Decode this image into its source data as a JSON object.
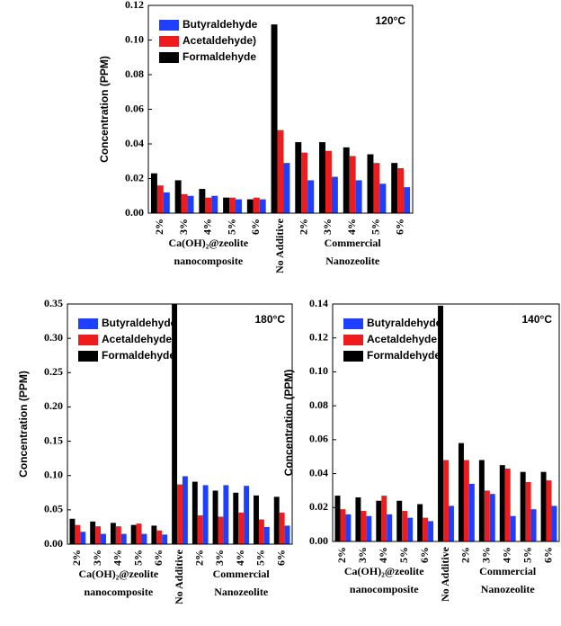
{
  "chart_data": [
    {
      "type": "bar",
      "annotation": "120°C",
      "ylabel": "Concentration (PPM)",
      "categories": [
        "2%",
        "3%",
        "4%",
        "5%",
        "6%",
        "No Additive",
        "2%",
        "3%",
        "4%",
        "5%",
        "6%"
      ],
      "group_labels": [
        [
          "Ca(OH)₂@zeolite",
          "nanocomposite"
        ],
        [
          "Commercial",
          "Nanozeolite"
        ]
      ],
      "series": [
        {
          "name": "Butyraldehyde",
          "color": "#1f3fff",
          "values": [
            0.012,
            0.01,
            0.01,
            0.008,
            0.008,
            0.029,
            0.019,
            0.021,
            0.019,
            0.017,
            0.015
          ]
        },
        {
          "name": "Acetaldehyde)",
          "color": "#ee1c1c",
          "values": [
            0.016,
            0.011,
            0.009,
            0.009,
            0.009,
            0.048,
            0.035,
            0.036,
            0.033,
            0.029,
            0.026
          ]
        },
        {
          "name": "Formaldehyde",
          "color": "#000000",
          "values": [
            0.023,
            0.019,
            0.014,
            0.009,
            0.008,
            0.109,
            0.041,
            0.041,
            0.038,
            0.034,
            0.029
          ]
        }
      ],
      "ylim": [
        0,
        0.12
      ],
      "yticks": [
        {
          "value": 0,
          "label": "0.00"
        },
        0.02,
        0.04,
        0.06,
        0.08,
        {
          "value": 0.1,
          "label": "0.10"
        },
        0.12
      ]
    },
    {
      "type": "bar",
      "annotation": "180°C",
      "ylabel": "Concentration (PPM)",
      "categories": [
        "2%",
        "3%",
        "4%",
        "5%",
        "6%",
        "No Additive",
        "2%",
        "3%",
        "4%",
        "5%",
        "6%"
      ],
      "group_labels": [
        [
          "Ca(OH)₂@zeolite",
          "nanocomposite"
        ],
        [
          "Commercial",
          "Nanozeolite"
        ]
      ],
      "series": [
        {
          "name": "Butyraldehyde",
          "color": "#1f3fff",
          "values": [
            0.018,
            0.015,
            0.015,
            0.015,
            0.014,
            0.099,
            0.086,
            0.086,
            0.085,
            0.025,
            0.027
          ]
        },
        {
          "name": "Acetaldehyde)",
          "color": "#ee1c1c",
          "values": [
            0.028,
            0.026,
            0.026,
            0.03,
            0.02,
            0.087,
            0.042,
            0.04,
            0.046,
            0.036,
            0.046
          ]
        },
        {
          "name": "Formaldehyde",
          "color": "#000000",
          "values": [
            0.037,
            0.033,
            0.031,
            0.028,
            0.027,
            0.35,
            0.091,
            0.078,
            0.075,
            0.071,
            0.069
          ]
        }
      ],
      "ylim": [
        0,
        0.35
      ],
      "yticks": [
        {
          "value": 0,
          "label": "0.00"
        },
        0.05,
        {
          "value": 0.1,
          "label": "0.10"
        },
        0.15,
        {
          "value": 0.2,
          "label": "0.20"
        },
        0.25,
        {
          "value": 0.3,
          "label": "0.30"
        },
        0.35
      ]
    },
    {
      "type": "bar",
      "annotation": "140°C",
      "ylabel": "Concentration (PPM)",
      "categories": [
        "2%",
        "3%",
        "4%",
        "5%",
        "6%",
        "No Additive",
        "2%",
        "3%",
        "4%",
        "5%",
        "6%"
      ],
      "group_labels": [
        [
          "Ca(OH)₂@zeolite",
          "nanocomposite"
        ],
        [
          "Commercial",
          "Nanozeolite"
        ]
      ],
      "series": [
        {
          "name": "Butyraldehyde",
          "color": "#1f3fff",
          "values": [
            0.016,
            0.015,
            0.016,
            0.014,
            0.012,
            0.021,
            0.034,
            0.028,
            0.015,
            0.019,
            0.021
          ]
        },
        {
          "name": "Acetaldehyde",
          "color": "#ee1c1c",
          "values": [
            0.019,
            0.018,
            0.027,
            0.018,
            0.014,
            0.048,
            0.048,
            0.03,
            0.043,
            0.035,
            0.036
          ]
        },
        {
          "name": "Formaldehyde",
          "color": "#000000",
          "values": [
            0.027,
            0.026,
            0.024,
            0.024,
            0.022,
            0.139,
            0.058,
            0.048,
            0.045,
            0.041,
            0.041
          ]
        }
      ],
      "ylim": [
        0,
        0.14
      ],
      "yticks": [
        {
          "value": 0,
          "label": "0.00"
        },
        0.02,
        0.04,
        0.06,
        0.08,
        {
          "value": 0.1,
          "label": "0.10"
        },
        0.12,
        0.14
      ]
    }
  ]
}
